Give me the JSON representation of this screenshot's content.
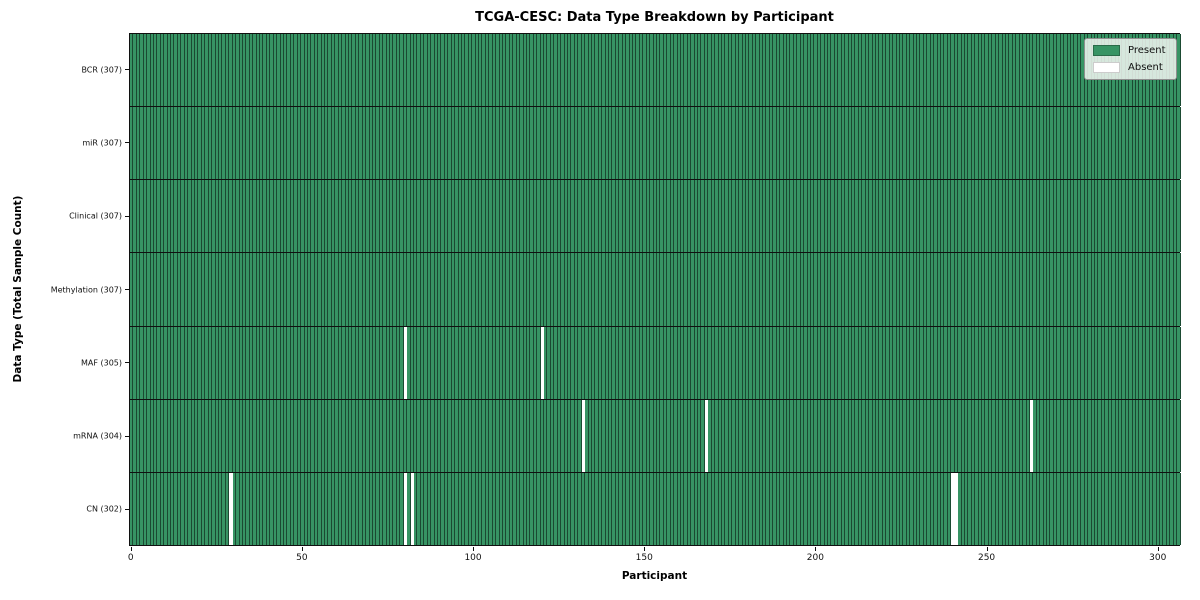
{
  "chart_data": {
    "type": "heatmap",
    "title": "TCGA-CESC: Data Type Breakdown by Participant",
    "xlabel": "Participant",
    "ylabel": "Data Type (Total Sample Count)",
    "n_participants": 307,
    "x_range": [
      0,
      307
    ],
    "x_ticks": [
      0,
      50,
      100,
      150,
      200,
      250,
      300
    ],
    "legend_entries": [
      {
        "label": "Present",
        "value": "present"
      },
      {
        "label": "Absent",
        "value": "absent"
      }
    ],
    "rows": [
      {
        "label": "BCR (307)",
        "data_type": "BCR",
        "present_count": 307,
        "absent_participants": []
      },
      {
        "label": "miR (307)",
        "data_type": "miR",
        "present_count": 307,
        "absent_participants": []
      },
      {
        "label": "Clinical (307)",
        "data_type": "Clinical",
        "present_count": 307,
        "absent_participants": []
      },
      {
        "label": "Methylation (307)",
        "data_type": "Methylation",
        "present_count": 307,
        "absent_participants": []
      },
      {
        "label": "MAF (305)",
        "data_type": "MAF",
        "present_count": 305,
        "absent_participants": [
          80,
          120
        ]
      },
      {
        "label": "mRNA (304)",
        "data_type": "mRNA",
        "present_count": 304,
        "absent_participants": [
          132,
          168,
          263
        ]
      },
      {
        "label": "CN (302)",
        "data_type": "CN",
        "present_count": 302,
        "absent_participants": [
          29,
          80,
          82,
          240,
          241
        ]
      }
    ],
    "colors": {
      "present": "#379464",
      "absent": "#ffffff",
      "cell_edge": "rgba(0,0,0,0.5)",
      "row_divider": "#101010",
      "plot_border": "#101010",
      "legend_swatch_edge": "#2a6b49",
      "absent_swatch_edge": "#cccccc"
    },
    "layout": {
      "grid": "cell-edges-visible",
      "legend_position": "upper-right-inside"
    }
  }
}
